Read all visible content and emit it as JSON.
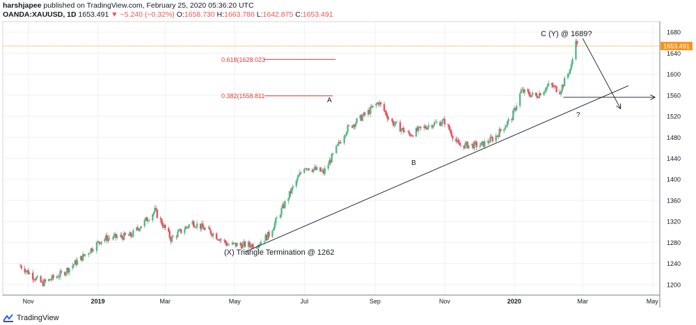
{
  "header": {
    "publisher": "harshjapee",
    "published_text": "published on TradingView.com, February 25, 2020 05:36:20 UTC",
    "symbol": "OANDA:XAUUSD, 1D",
    "last": "1653.491",
    "change": "−5.240 (−0.32%)",
    "o_label": "O:",
    "o": "1658.730",
    "h_label": "H:",
    "h": "1663.786",
    "l_label": "L:",
    "l": "1642.875",
    "c_label": "C:",
    "c": "1653.491"
  },
  "footer": {
    "brand": "TradingView"
  },
  "colors": {
    "up": "#53b987",
    "down": "#eb4d5c",
    "orange": "#f7931a",
    "fib": "#e53935"
  },
  "chart_data": {
    "type": "candlestick",
    "y_axis": {
      "ticks": [
        1200,
        1240,
        1280,
        1320,
        1360,
        1400,
        1440,
        1480,
        1520,
        1560,
        1600,
        1640,
        1680
      ],
      "range": [
        1180,
        1700
      ]
    },
    "x_axis": {
      "ticks": [
        "Nov",
        "2019",
        "Mar",
        "May",
        "Jul",
        "Sep",
        "Nov",
        "2020",
        "Mar",
        "May"
      ]
    },
    "last_price_label": "1653.491",
    "anchors": [
      {
        "x": "2018-10-25",
        "y": 1236
      },
      {
        "x": "2018-11-13",
        "y": 1202
      },
      {
        "x": "2018-12-01",
        "y": 1221
      },
      {
        "x": "2018-12-20",
        "y": 1255
      },
      {
        "x": "2019-01-05",
        "y": 1287
      },
      {
        "x": "2019-01-30",
        "y": 1293
      },
      {
        "x": "2019-02-20",
        "y": 1340
      },
      {
        "x": "2019-03-06",
        "y": 1287
      },
      {
        "x": "2019-03-25",
        "y": 1318
      },
      {
        "x": "2019-04-10",
        "y": 1300
      },
      {
        "x": "2019-04-25",
        "y": 1276
      },
      {
        "x": "2019-05-20",
        "y": 1275
      },
      {
        "x": "2019-05-31",
        "y": 1295
      },
      {
        "x": "2019-06-20",
        "y": 1380
      },
      {
        "x": "2019-07-01",
        "y": 1425
      },
      {
        "x": "2019-07-18",
        "y": 1413
      },
      {
        "x": "2019-08-07",
        "y": 1495
      },
      {
        "x": "2019-08-26",
        "y": 1528
      },
      {
        "x": "2019-09-04",
        "y": 1547
      },
      {
        "x": "2019-09-15",
        "y": 1510
      },
      {
        "x": "2019-10-01",
        "y": 1485
      },
      {
        "x": "2019-10-20",
        "y": 1505
      },
      {
        "x": "2019-11-01",
        "y": 1510
      },
      {
        "x": "2019-11-13",
        "y": 1465
      },
      {
        "x": "2019-12-03",
        "y": 1465
      },
      {
        "x": "2019-12-15",
        "y": 1480
      },
      {
        "x": "2019-12-30",
        "y": 1518
      },
      {
        "x": "2020-01-07",
        "y": 1568
      },
      {
        "x": "2020-01-20",
        "y": 1558
      },
      {
        "x": "2020-02-01",
        "y": 1580
      },
      {
        "x": "2020-02-10",
        "y": 1568
      },
      {
        "x": "2020-02-20",
        "y": 1615
      },
      {
        "x": "2020-02-24",
        "y": 1670
      },
      {
        "x": "2020-02-25",
        "y": 1653
      }
    ],
    "fib_levels": [
      {
        "label": "0.618(1628.023",
        "value": 1628.023
      },
      {
        "label": "0.382(1558.811",
        "value": 1558.811
      }
    ],
    "annotations": [
      {
        "text": "C (Y) @ 1689?"
      },
      {
        "text": "A"
      },
      {
        "text": "B"
      },
      {
        "text": "?"
      },
      {
        "text": "(X) Triangle Termination @ 1262"
      }
    ],
    "trendline": {
      "from": {
        "x": "2019-05-10",
        "y": 1262
      },
      "to": {
        "x": "2020-04-10",
        "y": 1578
      }
    },
    "horizontal_arrow": {
      "y": 1556,
      "from": "2020-02-13",
      "to": "2020-05-03"
    },
    "down_arrow": {
      "from": {
        "x": "2020-03-01",
        "y": 1668
      },
      "to": {
        "x": "2020-04-03",
        "y": 1535
      }
    }
  }
}
